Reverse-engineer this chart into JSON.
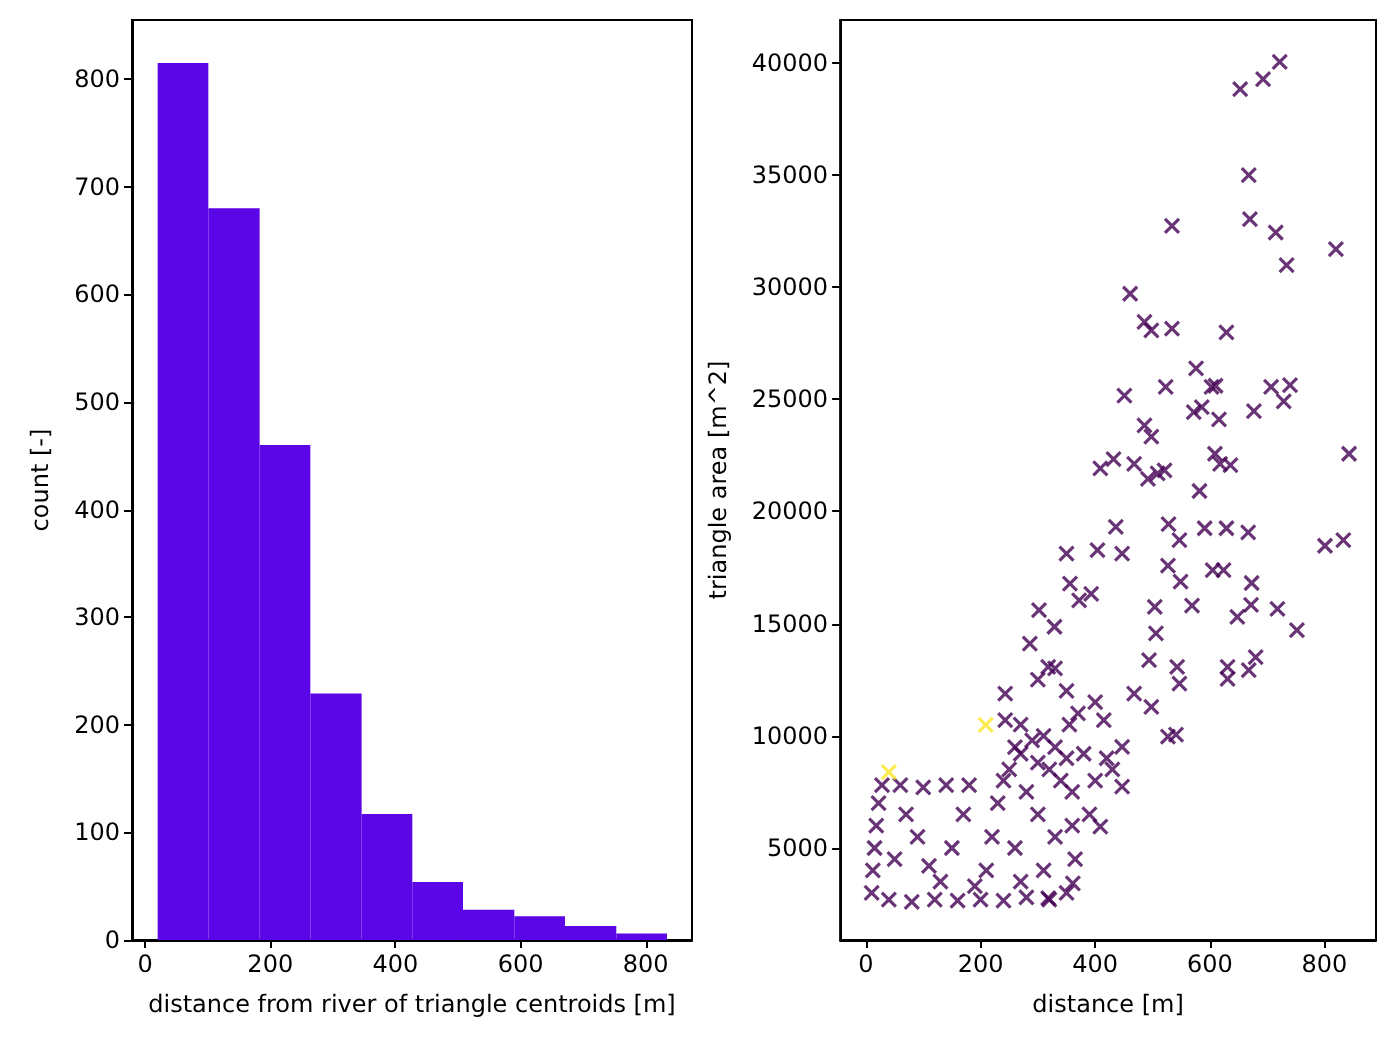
{
  "chart_data": [
    {
      "type": "histogram",
      "xlabel": "distance from river of triangle centroids [m]",
      "ylabel": "count [-]",
      "color": "#5b06e6",
      "bins": [
        20,
        101,
        183,
        264,
        346,
        427,
        508,
        590,
        671,
        753,
        834
      ],
      "values": [
        815,
        680,
        460,
        229,
        117,
        54,
        28,
        22,
        13,
        6
      ],
      "xlim": [
        -21,
        874
      ],
      "ylim": [
        0,
        855
      ],
      "xticks": [
        0,
        200,
        400,
        600,
        800
      ],
      "yticks": [
        0,
        100,
        200,
        300,
        400,
        500,
        600,
        700,
        800
      ],
      "grid": false
    },
    {
      "type": "scatter",
      "xlabel": "distance [m]",
      "ylabel": "triangle area [m^2]",
      "marker": "cross",
      "grid": false,
      "xlim": [
        -45,
        890
      ],
      "ylim": [
        900,
        41900
      ],
      "xticks": [
        0,
        200,
        400,
        600,
        800
      ],
      "yticks": [
        5000,
        10000,
        15000,
        20000,
        25000,
        30000,
        35000,
        40000
      ],
      "series": [
        {
          "color": "#440154",
          "x": [
            722,
            693,
            653,
            668,
            670,
            715,
            534,
            820,
            734,
            461,
            486,
            498,
            534,
            629,
            576,
            603,
            610,
            523,
            451,
            707,
            740,
            729,
            677,
            572,
            586,
            616,
            486,
            498,
            843,
            609,
            618,
            636,
            409,
            432,
            468,
            492,
            509,
            521,
            582,
            801,
            833,
            667,
            629,
            591,
            528,
            547,
            527,
            549,
            605,
            624,
            673,
            569,
            648,
            672,
            718,
            752,
            631,
            631,
            668,
            680,
            543,
            547,
            527,
            541,
            498,
            494,
            506,
            504,
            447,
            436,
            404,
            350,
            356,
            372,
            393,
            302,
            329,
            286,
            243,
            243,
            318,
            447,
            409,
            361,
            318,
            447,
            415,
            468,
            10,
            12,
            15,
            18,
            22,
            28,
            40,
            60,
            80,
            100,
            120,
            140,
            160,
            180,
            200,
            50,
            90,
            130,
            170,
            210,
            240,
            250,
            270,
            290,
            310,
            330,
            350,
            360,
            365,
            350,
            320,
            280,
            260,
            300,
            340,
            230,
            280,
            310,
            330,
            360,
            300,
            260,
            240,
            150,
            70,
            110,
            190,
            220,
            270,
            320,
            355,
            380,
            370,
            400,
            390,
            420,
            430,
            400,
            350,
            330,
            300,
            270
          ],
          "values": [
            40030,
            39260,
            38820,
            34990,
            33030,
            32430,
            32720,
            31690,
            30980,
            29700,
            28450,
            28070,
            28150,
            27980,
            26370,
            25550,
            25600,
            25550,
            25160,
            25550,
            25630,
            24900,
            24470,
            24420,
            24650,
            24100,
            23830,
            23330,
            22570,
            22570,
            22120,
            22060,
            21920,
            22330,
            22120,
            21450,
            21690,
            21830,
            20910,
            18470,
            18720,
            19070,
            19250,
            19250,
            19430,
            18720,
            17580,
            16870,
            17380,
            17380,
            16810,
            15800,
            15300,
            15840,
            15660,
            14710,
            13070,
            12540,
            12930,
            13510,
            13070,
            12330,
            9960,
            10050,
            11290,
            13370,
            14560,
            15750,
            18120,
            19310,
            18270,
            18120,
            16780,
            16040,
            16330,
            15600,
            14860,
            14110,
            11880,
            10700,
            13070,
            7730,
            5950,
            3420,
            2770,
            9510,
            10700,
            11880,
            3000,
            4000,
            5000,
            6000,
            7000,
            7800,
            2700,
            7800,
            2600,
            7700,
            2700,
            7800,
            2650,
            7800,
            2700,
            4500,
            5500,
            3500,
            6500,
            4000,
            2650,
            8500,
            9200,
            9800,
            10000,
            9500,
            9000,
            6000,
            4500,
            3000,
            2700,
            2800,
            5000,
            6500,
            8000,
            7000,
            7500,
            4000,
            5500,
            7500,
            8800,
            9500,
            8000,
            5000,
            6500,
            4200,
            3300,
            5500,
            3500,
            8500,
            10500,
            9200,
            11000,
            8000,
            6500,
            9000,
            8500,
            11500,
            12000,
            13000,
            12500,
            10500
          ]
        },
        {
          "color": "#fde725",
          "x": [
            40,
            209
          ],
          "values": [
            8380,
            10490
          ]
        }
      ]
    }
  ]
}
